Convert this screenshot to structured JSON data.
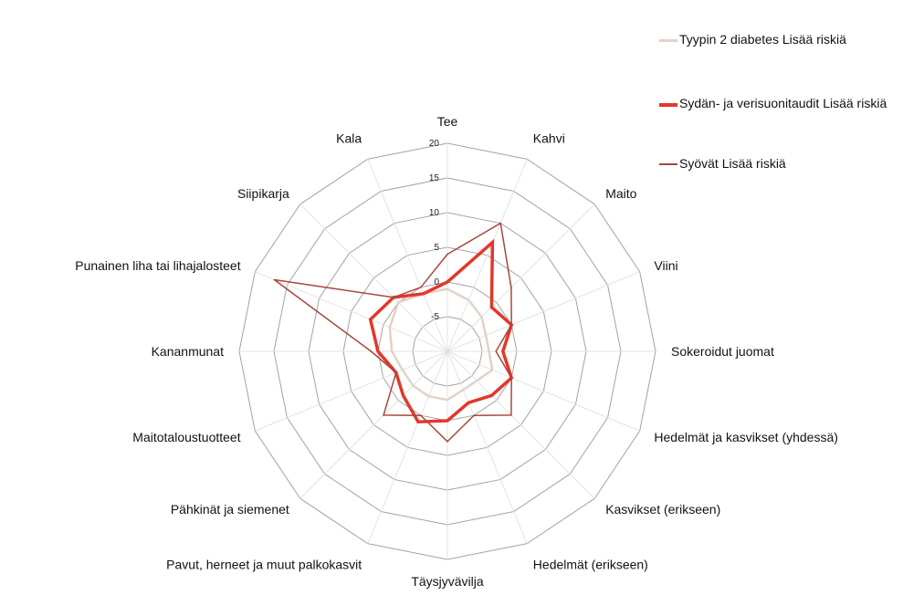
{
  "chart_data": {
    "type": "radar",
    "categories": [
      "Tee",
      "Kahvi",
      "Maito",
      "Viini",
      "Sokeroidut juomat",
      "Hedelmät ja kasvikset (yhdessä)",
      "Kasvikset (erikseen)",
      "Hedelmät (erikseen)",
      "Täysjyvävilja",
      "Pavut, herneet ja muut palkokasvit",
      "Pähkinät ja siemenet",
      "Maitotaloustuotteet",
      "Kananmunat",
      "Punainen liha tai lihajalosteet",
      "Siipikarja",
      "Kala"
    ],
    "rlim": [
      -10,
      20
    ],
    "ticks": [
      "-5",
      "0",
      "5",
      "10",
      "15",
      "20"
    ],
    "tick_values": [
      -5,
      0,
      5,
      10,
      15,
      20
    ],
    "grid": true,
    "legend_position": "top-right",
    "series": [
      {
        "name": "Tyypin 2 diabetes Lisää riskiä",
        "color": "#e2d2c8",
        "values": [
          -1,
          -2,
          -3,
          -4,
          -4,
          -3,
          -4,
          -4,
          -3,
          -3,
          -3,
          -3,
          -2,
          -1,
          0,
          -1
        ]
      },
      {
        "name": "Sydän- ja verisuonitaudit Lisää riskiä",
        "color": "#e3372a",
        "values": [
          0,
          7,
          -1,
          0,
          -2,
          0,
          -1,
          -2,
          0,
          1,
          -1,
          -2,
          0,
          2,
          1,
          -1
        ]
      },
      {
        "name": "Syövät Lisää riskiä",
        "color": "#a9473c",
        "values": [
          4,
          10,
          3,
          0,
          -3,
          0,
          3,
          0,
          3,
          0,
          3,
          -2,
          1,
          17,
          1,
          0
        ]
      }
    ]
  }
}
